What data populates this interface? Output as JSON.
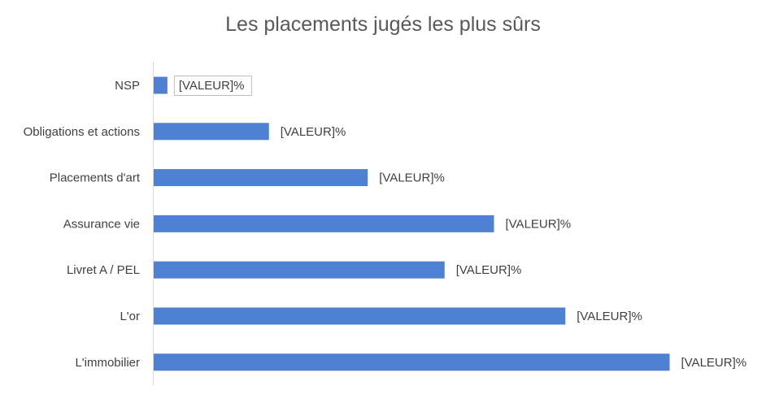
{
  "chart_data": {
    "type": "bar",
    "orientation": "horizontal",
    "title": "Les placements jugés les plus sûrs",
    "xlabel": "",
    "ylabel": "",
    "categories": [
      "NSP",
      "Obligations et actions",
      "Placements d'art",
      "Assurance vie",
      "Livret A / PEL",
      "L'or",
      "L'immobilier"
    ],
    "values": [
      2.5,
      21,
      39,
      62,
      53,
      75,
      94
    ],
    "data_labels": [
      "[VALEUR]%",
      "[VALEUR]%",
      "[VALEUR]%",
      "[VALEUR]%",
      "[VALEUR]%",
      "[VALEUR]%",
      "[VALEUR]%"
    ],
    "xlim": [
      0,
      100
    ],
    "grid": false,
    "legend": "none",
    "bar_color": "#4F81D2",
    "highlighted_label": "NSP"
  }
}
